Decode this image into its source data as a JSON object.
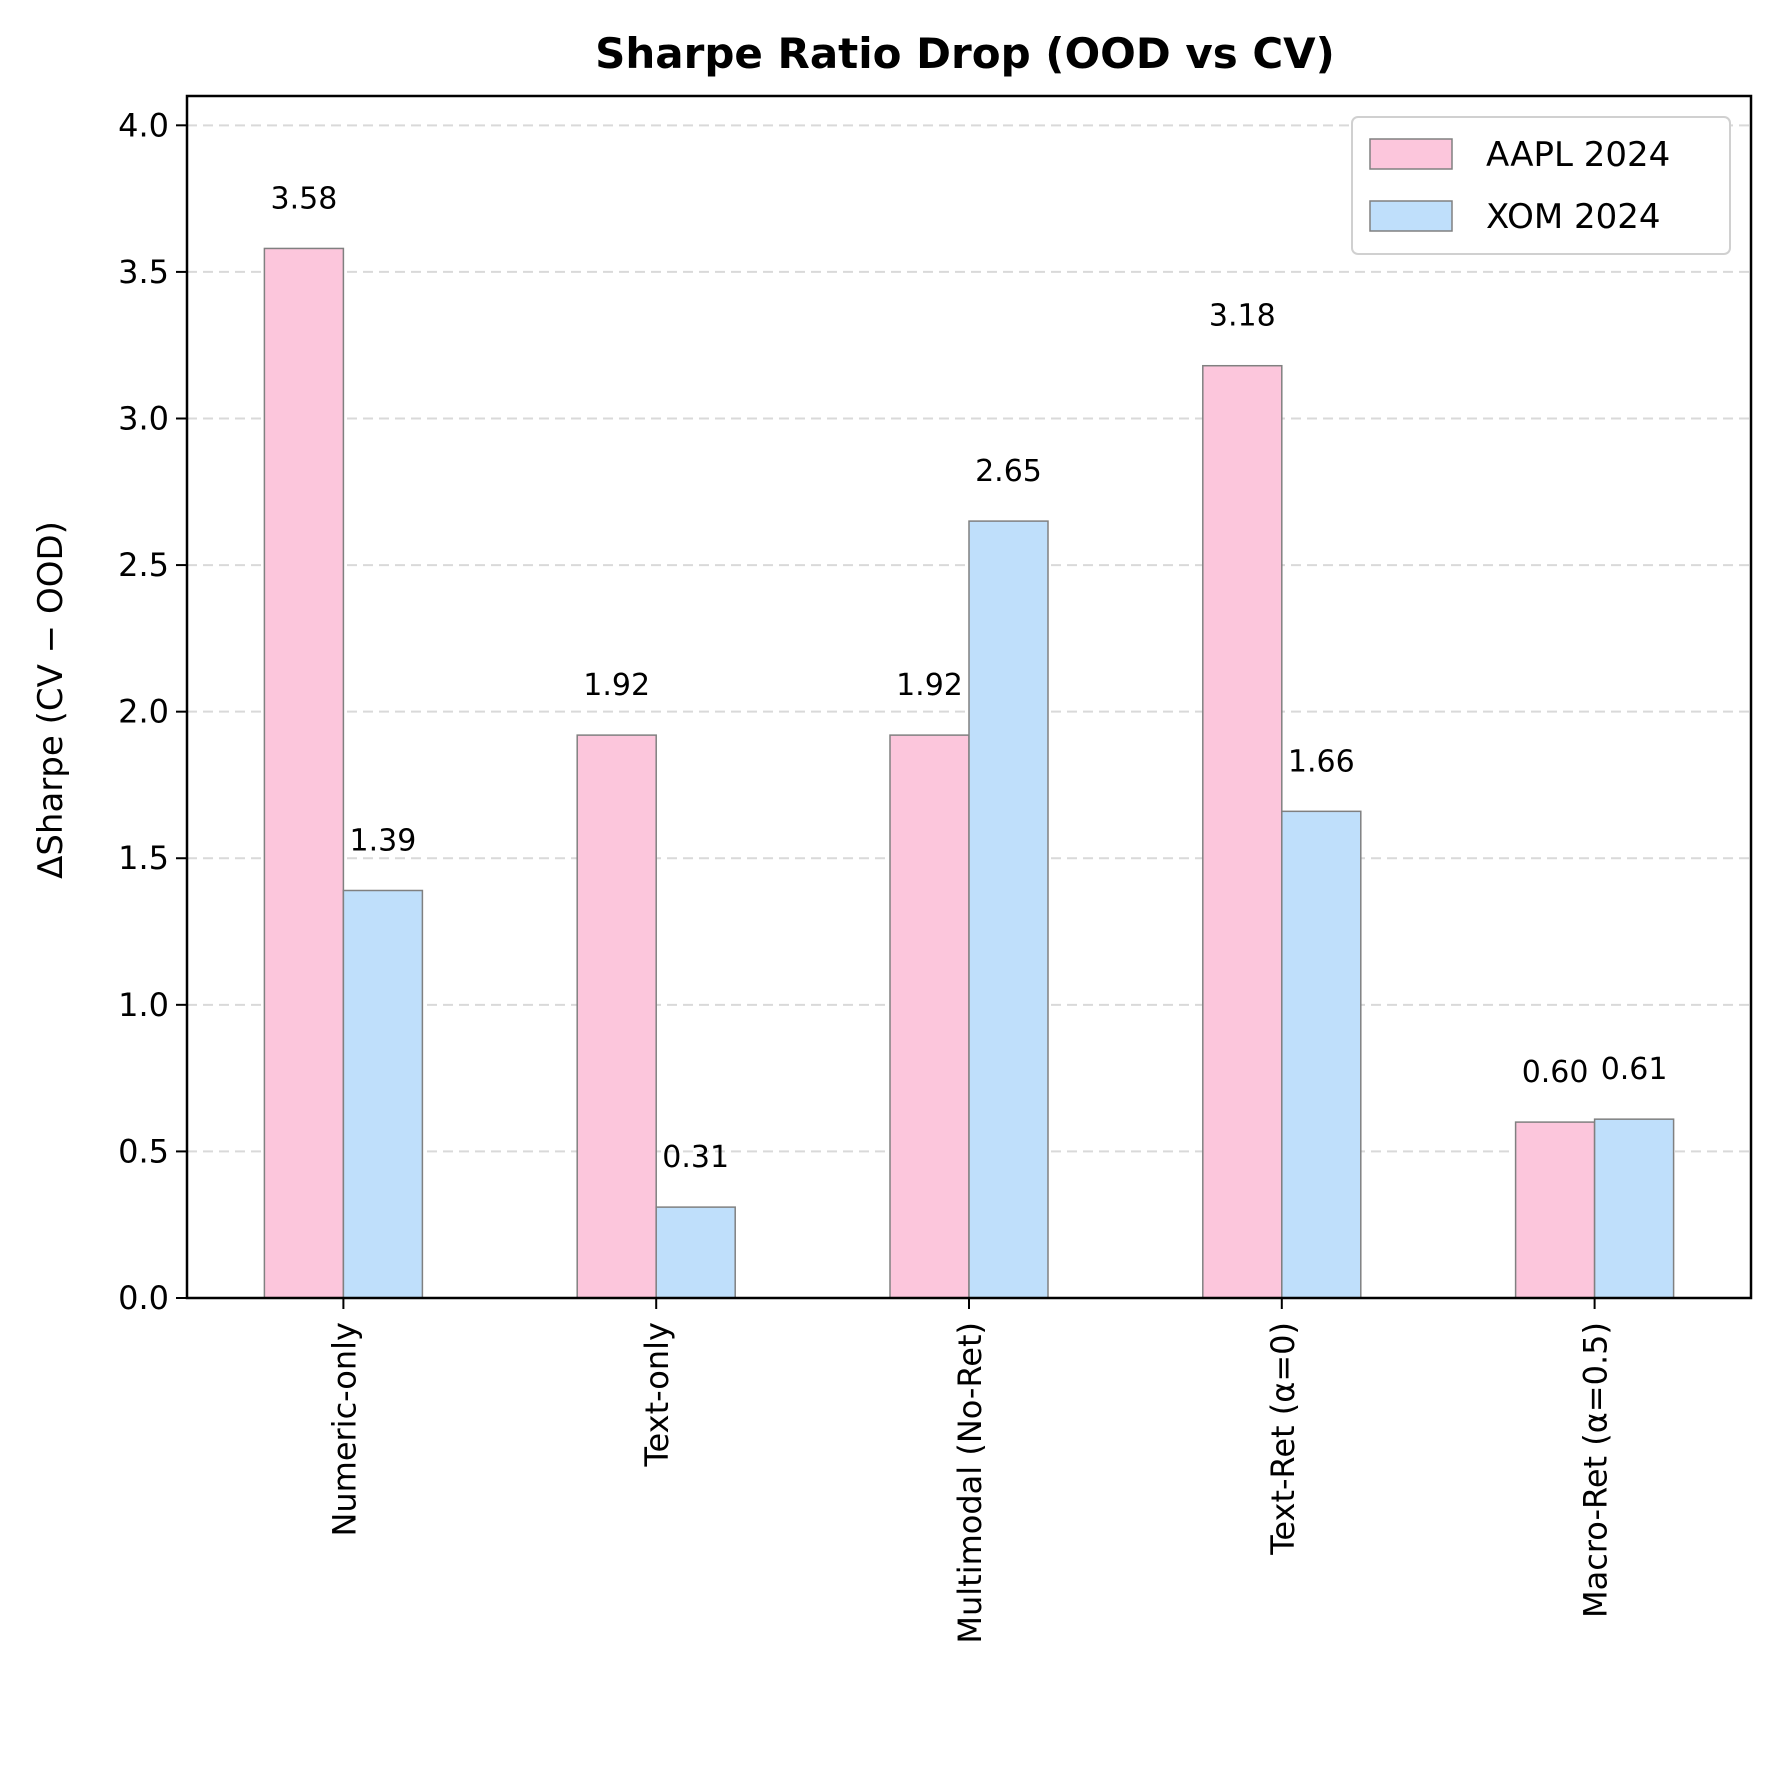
{
  "chart_data": {
    "type": "bar",
    "title": "Sharpe Ratio Drop (OOD vs CV)",
    "xlabel": "",
    "ylabel": "ΔSharpe (CV − OOD)",
    "categories": [
      "Numeric-only",
      "Text-only",
      "Multimodal (No-Ret)",
      "Text-Ret (α=0)",
      "Macro-Ret (α=0.5)"
    ],
    "series": [
      {
        "name": "AAPL 2024",
        "values": [
          3.58,
          1.92,
          1.92,
          3.18,
          0.6
        ],
        "labels": [
          "3.58",
          "1.92",
          "1.92",
          "3.18",
          "0.60"
        ],
        "color": "#fcc6dc"
      },
      {
        "name": "XOM 2024",
        "values": [
          1.39,
          0.31,
          2.65,
          1.66,
          0.61
        ],
        "labels": [
          "1.39",
          "0.31",
          "2.65",
          "1.66",
          "0.61"
        ],
        "color": "#bfdffb"
      }
    ],
    "ylim": [
      0,
      4.1
    ],
    "yticks": [
      "0.0",
      "0.5",
      "1.0",
      "1.5",
      "2.0",
      "2.5",
      "3.0",
      "3.5",
      "4.0"
    ],
    "grid": "y",
    "legend_position": "top-right",
    "bar_edge_color": "#808080"
  }
}
